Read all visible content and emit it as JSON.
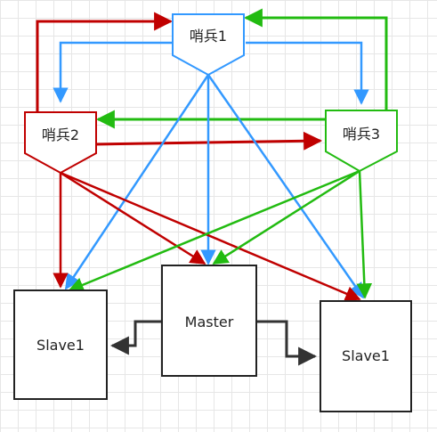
{
  "nodes": {
    "sentinel1": {
      "label": "哨兵1",
      "color": "#3399ff"
    },
    "sentinel2": {
      "label": "哨兵2",
      "color": "#c00000"
    },
    "sentinel3": {
      "label": "哨兵3",
      "color": "#22bb11"
    },
    "master": {
      "label": "Master"
    },
    "slave_left": {
      "label": "Slave1"
    },
    "slave_right": {
      "label": "Slave1"
    }
  },
  "colors": {
    "blue": "#3399ff",
    "red": "#c00000",
    "green": "#22bb11",
    "dark": "#333333"
  }
}
